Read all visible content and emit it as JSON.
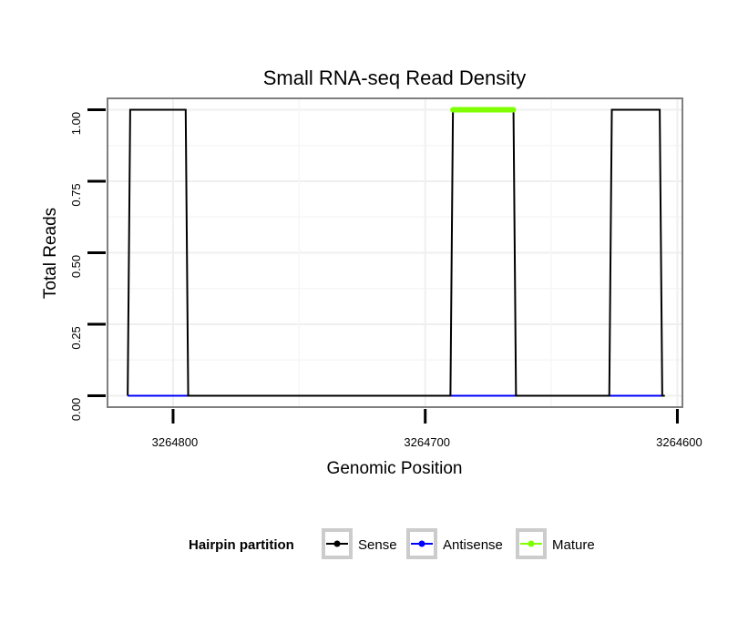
{
  "chart_data": {
    "type": "line",
    "title": "Small RNA-seq Read Density",
    "xlabel": "Genomic Position",
    "ylabel": "Total Reads",
    "x_reversed": true,
    "xlim": [
      3264826,
      3264598
    ],
    "ylim": [
      -0.04,
      1.04
    ],
    "x_ticks": [
      3264800,
      3264700,
      3264600
    ],
    "x_tick_labels": [
      "3264800",
      "3264700",
      "3264600"
    ],
    "y_ticks": [
      0.0,
      0.25,
      0.5,
      0.75,
      1.0
    ],
    "y_tick_labels": [
      "0.00",
      "0.25",
      "0.50",
      "0.75",
      "1.00"
    ],
    "grid": true,
    "legend": {
      "title": "Hairpin partition",
      "position": "bottom",
      "entries": [
        "Sense",
        "Antisense",
        "Mature"
      ]
    },
    "series": [
      {
        "name": "Sense",
        "color": "#000000",
        "x": [
          3264818,
          3264817,
          3264795,
          3264794,
          3264690,
          3264689,
          3264665,
          3264664,
          3264627,
          3264626,
          3264607,
          3264606,
          3264605
        ],
        "y": [
          0,
          1,
          1,
          0,
          0,
          1,
          1,
          0,
          0,
          1,
          1,
          0,
          0
        ]
      },
      {
        "name": "Antisense",
        "color": "#0000ff",
        "x": [
          3264818,
          3264605
        ],
        "y": [
          0,
          0
        ]
      },
      {
        "name": "Mature",
        "color": "#7fff00",
        "x": [
          3264689,
          3264665
        ],
        "y": [
          1,
          1
        ]
      }
    ]
  }
}
